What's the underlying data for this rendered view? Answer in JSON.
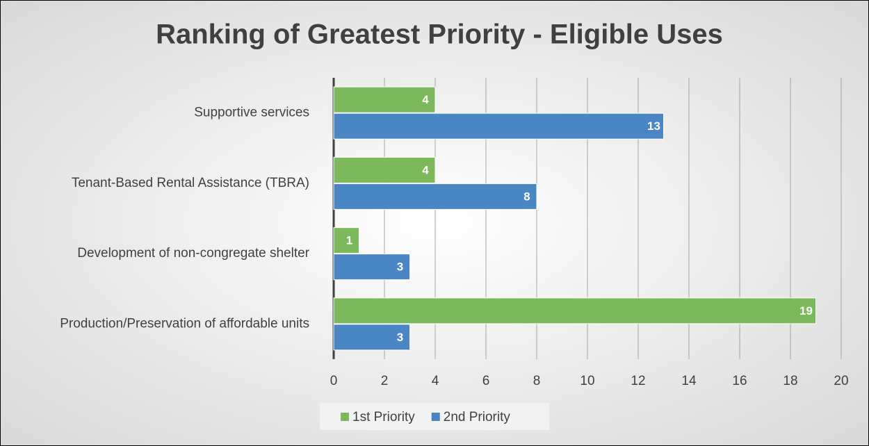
{
  "chart_data": {
    "type": "bar",
    "orientation": "horizontal",
    "title": "Ranking of Greatest Priority - Eligible Uses",
    "categories": [
      "Supportive services",
      "Tenant-Based Rental Assistance (TBRA)",
      "Development of non-congregate shelter",
      "Production/Preservation of affordable units"
    ],
    "series": [
      {
        "name": "1st Priority",
        "color": "#7cb85c",
        "values": [
          4,
          4,
          1,
          19
        ]
      },
      {
        "name": "2nd Priority",
        "color": "#4a86c4",
        "values": [
          13,
          8,
          3,
          3
        ]
      }
    ],
    "xlim": [
      0,
      20
    ],
    "xticks": [
      0,
      2,
      4,
      6,
      8,
      10,
      12,
      14,
      16,
      18,
      20
    ],
    "grid": true,
    "legend": "bottom"
  }
}
